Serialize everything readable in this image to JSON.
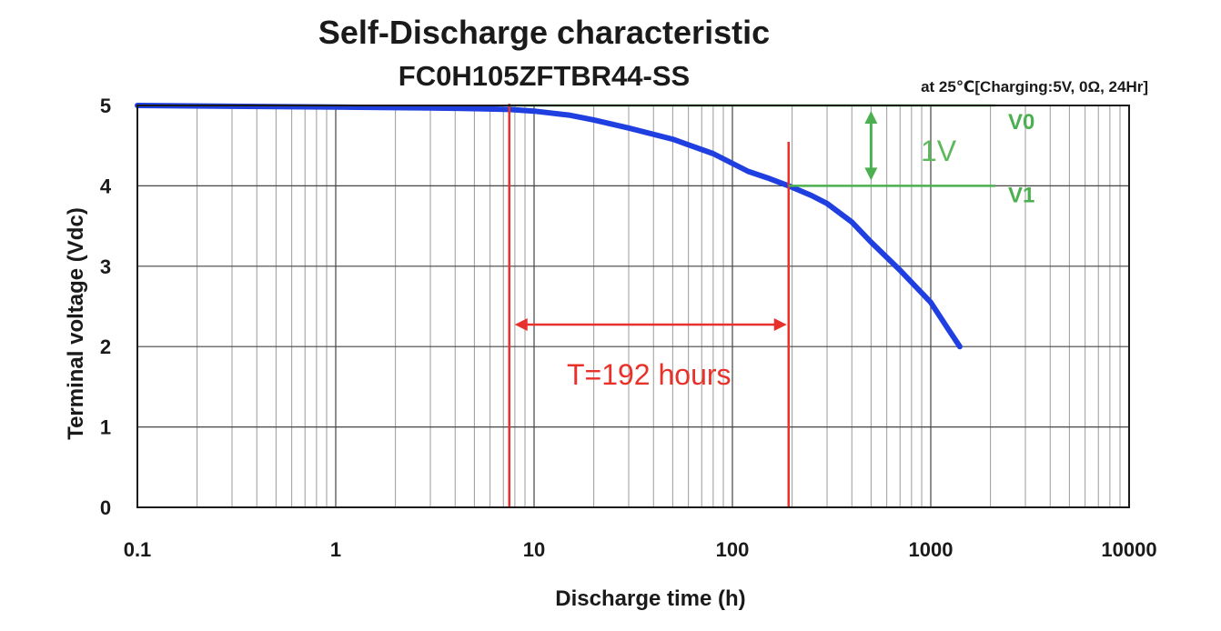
{
  "chart_data": {
    "type": "line",
    "title": "Self-Discharge characteristic",
    "subtitle": "FC0H105ZFTBR44-SS",
    "condition": "at 25℃[Charging:5V, 0Ω, 24Hr]",
    "xlabel": "Discharge time (h)",
    "ylabel": "Terminal voltage (Vdc)",
    "xscale": "log",
    "xlim": [
      0.1,
      10000
    ],
    "ylim": [
      0,
      5
    ],
    "grid": true,
    "x_tick_labels": [
      "0.1",
      "1",
      "10",
      "100",
      "1000",
      "10000"
    ],
    "y_tick_labels": [
      "0",
      "1",
      "2",
      "3",
      "4",
      "5"
    ],
    "series": [
      {
        "color": "#1f3fe0",
        "x": [
          0.1,
          1,
          3,
          5,
          7.5,
          10,
          15,
          20,
          30,
          50,
          80,
          120,
          150,
          192,
          250,
          300,
          400,
          500,
          700,
          1000,
          1200,
          1400
        ],
        "y": [
          5.0,
          4.98,
          4.97,
          4.96,
          4.95,
          4.93,
          4.88,
          4.82,
          4.72,
          4.58,
          4.4,
          4.18,
          4.1,
          4.0,
          3.88,
          3.78,
          3.55,
          3.3,
          2.95,
          2.55,
          2.25,
          2.0
        ]
      }
    ],
    "annotations": {
      "v0_label": "V0",
      "v1_label": "V1",
      "delta_label": "1V",
      "period_label": "T=192 hours",
      "v0": 5.0,
      "v1": 4.0,
      "t_start": 7.5,
      "t_end": 192
    },
    "colors": {
      "curve": "#1f3fe0",
      "reference": "#4caf50",
      "period": "#e8312a"
    }
  }
}
